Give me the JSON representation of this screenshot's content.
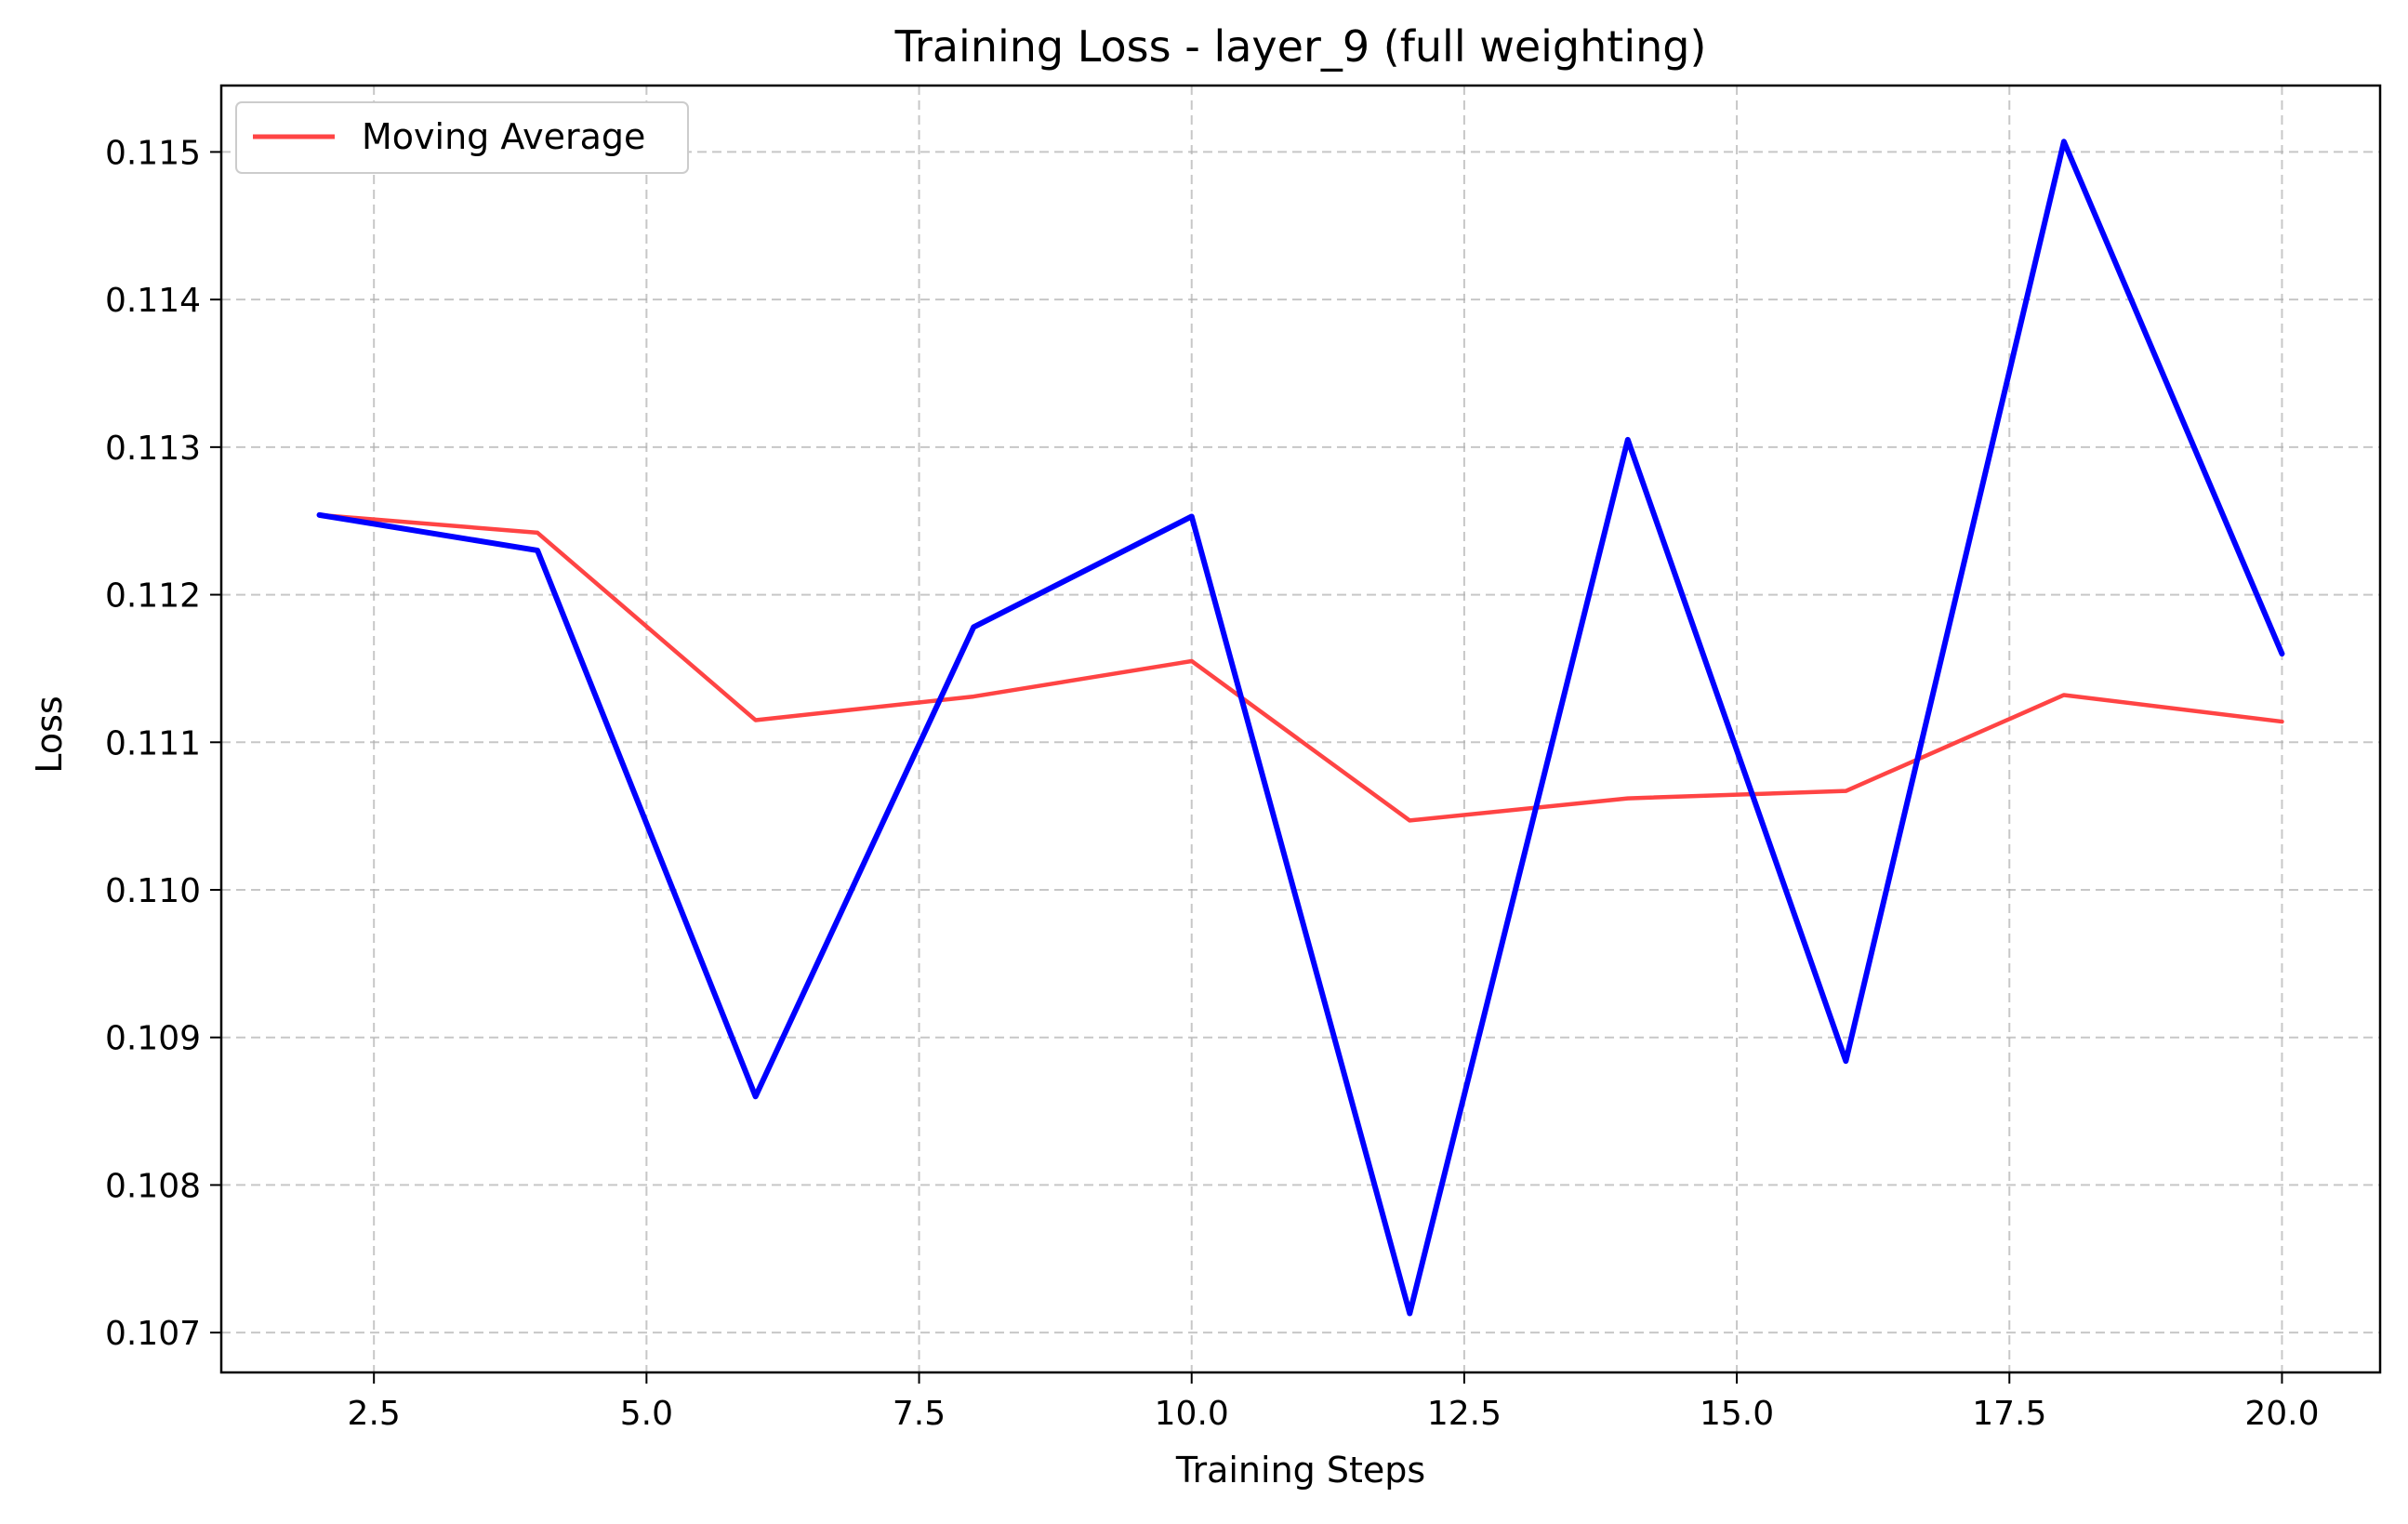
{
  "colors": {
    "loss_line": "#0000ff",
    "moving_average": "#ff4444",
    "grid": "#b0b0b0",
    "background": "#ffffff"
  },
  "chart_data": {
    "type": "line",
    "title": "Training Loss - layer_9 (full weighting)",
    "xlabel": "Training Steps",
    "ylabel": "Loss",
    "xlim": [
      1.1,
      20.9
    ],
    "ylim": [
      0.10673,
      0.11545
    ],
    "xticks": [
      2.5,
      5.0,
      7.5,
      10.0,
      12.5,
      15.0,
      17.5,
      20.0
    ],
    "xtick_labels": [
      "2.5",
      "5.0",
      "7.5",
      "10.0",
      "12.5",
      "15.0",
      "17.5",
      "20.0"
    ],
    "yticks": [
      0.107,
      0.108,
      0.109,
      0.11,
      0.111,
      0.112,
      0.113,
      0.114,
      0.115
    ],
    "ytick_labels": [
      "0.107",
      "0.108",
      "0.109",
      "0.110",
      "0.111",
      "0.112",
      "0.113",
      "0.114",
      "0.115"
    ],
    "grid": true,
    "legend_position": "top-left",
    "x": [
      2,
      4,
      6,
      8,
      10,
      12,
      14,
      16,
      18,
      20
    ],
    "series": [
      {
        "values": [
          0.11254,
          0.1123,
          0.1086,
          0.11178,
          0.11253,
          0.10713,
          0.11305,
          0.10884,
          0.11507,
          0.1116
        ],
        "color": "#0000ff"
      },
      {
        "name": "Moving Average",
        "values": [
          0.11254,
          0.11242,
          0.11115,
          0.11131,
          0.11155,
          0.11047,
          0.11062,
          0.11067,
          0.11132,
          0.11114
        ],
        "color": "#ff4444"
      }
    ]
  }
}
